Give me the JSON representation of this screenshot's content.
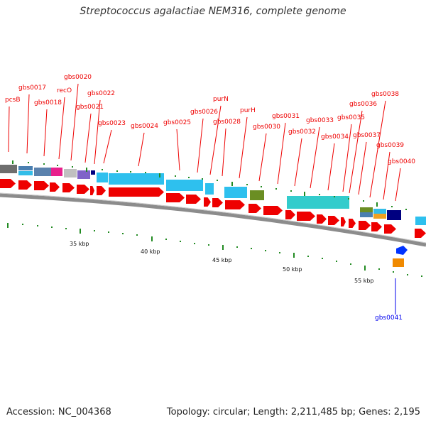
{
  "title": "Streptococcus agalactiae NEM316, complete genome",
  "footer": {
    "accession": "Accession: NC_004368",
    "topology": "Topology: circular; Length: 2,211,485 bp; Genes: 2,195"
  },
  "colors": {
    "gene_label": "#cc0000",
    "highlight_label": "#0000cc",
    "arrow": "#ee0000",
    "tick": "#228b22",
    "backbone": "#8c8c8c"
  },
  "kbp_labels": [
    "35 kbp",
    "40 kbp",
    "45 kbp",
    "50 kbp",
    "55 kbp"
  ],
  "genes": [
    {
      "name": "pcsB",
      "color": "#ee0000"
    },
    {
      "name": "gbs0017",
      "color": "#ee0000"
    },
    {
      "name": "gbs0018",
      "color": "#ee0000"
    },
    {
      "name": "recO",
      "color": "#ee0000"
    },
    {
      "name": "gbs0020",
      "color": "#ee0000"
    },
    {
      "name": "gbs0021",
      "color": "#ee0000"
    },
    {
      "name": "gbs0022",
      "color": "#ee0000"
    },
    {
      "name": "gbs0023",
      "color": "#ee0000"
    },
    {
      "name": "gbs0024",
      "color": "#ee0000"
    },
    {
      "name": "gbs0025",
      "color": "#ee0000"
    },
    {
      "name": "gbs0026",
      "color": "#ee0000"
    },
    {
      "name": "purN",
      "color": "#ee0000"
    },
    {
      "name": "gbs0028",
      "color": "#ee0000"
    },
    {
      "name": "purH",
      "color": "#ee0000"
    },
    {
      "name": "gbs0030",
      "color": "#ee0000"
    },
    {
      "name": "gbs0031",
      "color": "#ee0000"
    },
    {
      "name": "gbs0032",
      "color": "#ee0000"
    },
    {
      "name": "gbs0033",
      "color": "#ee0000"
    },
    {
      "name": "gbs0034",
      "color": "#ee0000"
    },
    {
      "name": "gbs0035",
      "color": "#ee0000"
    },
    {
      "name": "gbs0036",
      "color": "#ee0000"
    },
    {
      "name": "gbs0037",
      "color": "#ee0000"
    },
    {
      "name": "gbs0038",
      "color": "#ee0000"
    },
    {
      "name": "gbs0039",
      "color": "#ee0000"
    },
    {
      "name": "gbs0040",
      "color": "#ee0000"
    },
    {
      "name": "gbs0041",
      "color": "#0000ee"
    }
  ]
}
